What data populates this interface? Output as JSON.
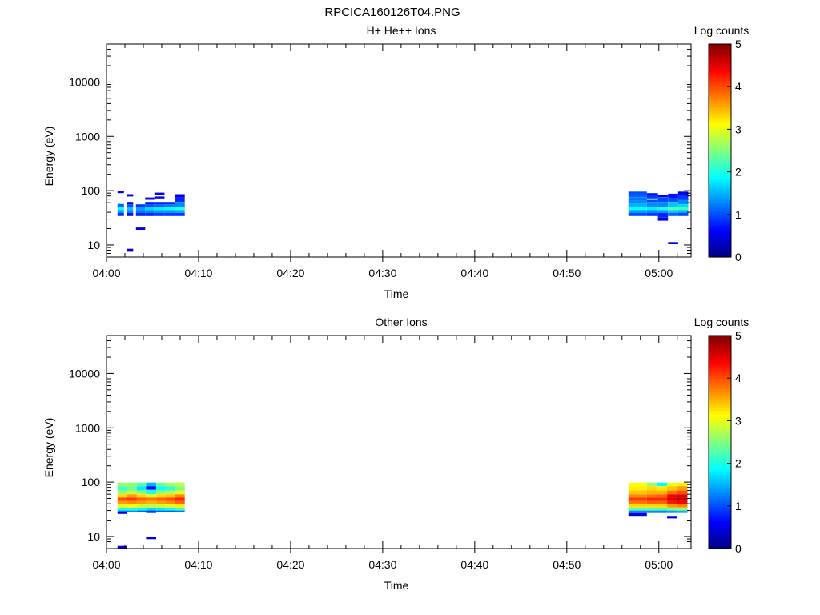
{
  "figure_title": "RPCICA160126T04.PNG",
  "colormap": "jet",
  "chart_data": [
    {
      "type": "heatmap",
      "title": "H+ He++ Ions",
      "xlabel": "Time",
      "ylabel": "Energy (eV)",
      "x_unit": "minutes after 04:00",
      "xlim": [
        0,
        63.5
      ],
      "x_ticks": [
        "04:00",
        "04:10",
        "04:20",
        "04:30",
        "04:40",
        "04:50",
        "05:00"
      ],
      "ylim": [
        6,
        50000
      ],
      "y_scale": "log",
      "y_ticks": [
        "10",
        "100",
        "1000",
        "10000"
      ],
      "colorbar": {
        "label": "Log counts",
        "range": [
          0,
          5
        ],
        "ticks": [
          "0",
          "1",
          "2",
          "3",
          "4",
          "5"
        ]
      },
      "cells": [
        [
          1.2,
          1.9,
          90,
          100,
          0.6
        ],
        [
          1.2,
          1.9,
          50,
          57,
          1.1
        ],
        [
          1.2,
          1.9,
          44,
          50,
          1.9
        ],
        [
          1.2,
          1.9,
          39,
          44,
          1.4
        ],
        [
          1.2,
          1.9,
          34,
          39,
          0.9
        ],
        [
          2.2,
          2.9,
          78,
          86,
          0.5
        ],
        [
          2.2,
          2.9,
          56,
          62,
          0.6
        ],
        [
          2.2,
          2.9,
          50,
          56,
          1.0
        ],
        [
          2.2,
          2.9,
          44,
          50,
          1.6
        ],
        [
          2.2,
          2.9,
          39,
          44,
          1.3
        ],
        [
          2.2,
          2.9,
          34,
          39,
          0.7
        ],
        [
          2.2,
          2.9,
          7.5,
          8.5,
          0.4
        ],
        [
          3.2,
          4.2,
          50,
          56,
          0.9
        ],
        [
          3.2,
          4.2,
          44,
          50,
          1.4
        ],
        [
          3.2,
          4.2,
          39,
          44,
          1.2
        ],
        [
          3.2,
          4.2,
          34,
          39,
          0.8
        ],
        [
          3.2,
          4.2,
          19,
          21,
          0.5
        ],
        [
          4.2,
          5.2,
          68,
          75,
          0.6
        ],
        [
          4.2,
          5.2,
          56,
          62,
          0.7
        ],
        [
          4.2,
          5.2,
          50,
          56,
          1.0
        ],
        [
          4.2,
          5.2,
          44,
          50,
          1.7
        ],
        [
          4.2,
          5.2,
          39,
          44,
          1.3
        ],
        [
          4.2,
          5.2,
          34,
          39,
          0.8
        ],
        [
          5.2,
          6.3,
          84,
          92,
          0.6
        ],
        [
          5.2,
          6.3,
          72,
          78,
          0.5
        ],
        [
          5.2,
          6.3,
          56,
          62,
          0.8
        ],
        [
          5.2,
          6.3,
          50,
          56,
          1.1
        ],
        [
          5.2,
          6.3,
          44,
          50,
          1.8
        ],
        [
          5.2,
          6.3,
          39,
          44,
          1.4
        ],
        [
          5.2,
          6.3,
          34,
          39,
          0.9
        ],
        [
          6.3,
          7.4,
          56,
          62,
          0.8
        ],
        [
          6.3,
          7.4,
          50,
          56,
          1.2
        ],
        [
          6.3,
          7.4,
          44,
          50,
          1.9
        ],
        [
          6.3,
          7.4,
          39,
          44,
          1.4
        ],
        [
          6.3,
          7.4,
          34,
          39,
          0.9
        ],
        [
          7.4,
          8.5,
          75,
          86,
          0.5
        ],
        [
          7.4,
          8.5,
          62,
          75,
          0.8
        ],
        [
          7.4,
          8.5,
          50,
          62,
          1.3
        ],
        [
          7.4,
          8.5,
          44,
          50,
          2.1
        ],
        [
          7.4,
          8.5,
          39,
          44,
          1.5
        ],
        [
          7.4,
          8.5,
          34,
          39,
          0.9
        ],
        [
          56.7,
          58.7,
          86,
          96,
          1.0
        ],
        [
          56.7,
          58.7,
          76,
          86,
          1.1
        ],
        [
          56.7,
          58.7,
          66,
          76,
          1.2
        ],
        [
          56.7,
          58.7,
          57,
          66,
          1.3
        ],
        [
          56.7,
          58.7,
          50,
          57,
          1.5
        ],
        [
          56.7,
          58.7,
          44,
          50,
          1.9
        ],
        [
          56.7,
          58.7,
          39,
          44,
          1.4
        ],
        [
          56.7,
          58.7,
          34,
          39,
          1.0
        ],
        [
          58.7,
          59.9,
          82,
          90,
          0.7
        ],
        [
          58.7,
          59.9,
          72,
          82,
          0.9
        ],
        [
          58.7,
          59.9,
          62,
          68,
          1.0
        ],
        [
          58.7,
          59.9,
          50,
          62,
          1.3
        ],
        [
          58.7,
          59.9,
          44,
          50,
          1.8
        ],
        [
          58.7,
          59.9,
          39,
          44,
          1.3
        ],
        [
          58.7,
          59.9,
          34,
          39,
          0.9
        ],
        [
          59.9,
          61.0,
          76,
          84,
          0.6
        ],
        [
          59.9,
          61.0,
          62,
          76,
          1.0
        ],
        [
          59.9,
          61.0,
          50,
          62,
          1.3
        ],
        [
          59.9,
          61.0,
          44,
          50,
          2.0
        ],
        [
          59.9,
          61.0,
          39,
          44,
          1.4
        ],
        [
          59.9,
          61.0,
          32,
          39,
          0.8
        ],
        [
          59.9,
          61.0,
          28,
          32,
          0.5
        ],
        [
          61.0,
          62.1,
          72,
          88,
          0.7
        ],
        [
          61.0,
          62.1,
          62,
          72,
          1.0
        ],
        [
          61.0,
          62.1,
          50,
          62,
          1.6
        ],
        [
          61.0,
          62.1,
          44,
          50,
          2.3
        ],
        [
          61.0,
          62.1,
          39,
          44,
          1.6
        ],
        [
          61.0,
          62.1,
          34,
          39,
          1.1
        ],
        [
          61.0,
          62.1,
          10.3,
          11.3,
          0.5
        ],
        [
          62.1,
          63.2,
          82,
          96,
          0.6
        ],
        [
          62.1,
          63.2,
          68,
          82,
          0.9
        ],
        [
          62.1,
          63.2,
          56,
          68,
          1.3
        ],
        [
          62.1,
          63.2,
          50,
          56,
          1.7
        ],
        [
          62.1,
          63.2,
          44,
          50,
          2.2
        ],
        [
          62.1,
          63.2,
          39,
          44,
          1.5
        ],
        [
          62.1,
          63.2,
          34,
          39,
          1.0
        ]
      ]
    },
    {
      "type": "heatmap",
      "title": "Other Ions",
      "xlabel": "Time",
      "ylabel": "Energy (eV)",
      "x_unit": "minutes after 04:00",
      "xlim": [
        0,
        63.5
      ],
      "x_ticks": [
        "04:00",
        "04:10",
        "04:20",
        "04:30",
        "04:40",
        "04:50",
        "05:00"
      ],
      "ylim": [
        6,
        50000
      ],
      "y_scale": "log",
      "y_ticks": [
        "10",
        "100",
        "1000",
        "10000"
      ],
      "colorbar": {
        "label": "Log counts",
        "range": [
          0,
          5
        ],
        "ticks": [
          "0",
          "1",
          "2",
          "3",
          "4",
          "5"
        ]
      },
      "cells": [
        [
          1.2,
          2.2,
          84,
          98,
          2.6
        ],
        [
          1.2,
          2.2,
          70,
          84,
          2.2
        ],
        [
          1.2,
          2.2,
          60,
          70,
          2.6
        ],
        [
          1.2,
          2.2,
          52,
          60,
          3.3
        ],
        [
          1.2,
          2.2,
          45,
          52,
          4.0
        ],
        [
          1.2,
          2.2,
          39,
          45,
          3.6
        ],
        [
          1.2,
          2.2,
          34,
          39,
          3.0
        ],
        [
          1.2,
          2.2,
          30,
          34,
          2.0
        ],
        [
          1.2,
          2.2,
          28,
          30,
          1.2
        ],
        [
          1.2,
          2.2,
          26,
          28,
          0.5
        ],
        [
          2.2,
          3.3,
          84,
          98,
          2.6
        ],
        [
          2.2,
          3.3,
          70,
          84,
          2.4
        ],
        [
          2.2,
          3.3,
          60,
          70,
          2.8
        ],
        [
          2.2,
          3.3,
          52,
          60,
          3.6
        ],
        [
          2.2,
          3.3,
          45,
          52,
          4.1
        ],
        [
          2.2,
          3.3,
          39,
          45,
          3.7
        ],
        [
          2.2,
          3.3,
          34,
          39,
          3.1
        ],
        [
          2.2,
          3.3,
          30,
          34,
          2.0
        ],
        [
          2.2,
          3.3,
          28,
          30,
          1.3
        ],
        [
          3.3,
          4.3,
          84,
          98,
          2.3
        ],
        [
          3.3,
          4.3,
          70,
          84,
          1.8
        ],
        [
          3.3,
          4.3,
          60,
          70,
          2.6
        ],
        [
          3.3,
          4.3,
          52,
          60,
          3.3
        ],
        [
          3.3,
          4.3,
          45,
          52,
          3.9
        ],
        [
          3.3,
          4.3,
          39,
          45,
          3.6
        ],
        [
          3.3,
          4.3,
          34,
          39,
          2.9
        ],
        [
          3.3,
          4.3,
          30,
          34,
          1.9
        ],
        [
          3.3,
          4.3,
          28,
          30,
          1.1
        ],
        [
          4.3,
          5.4,
          84,
          98,
          1.5
        ],
        [
          4.3,
          5.4,
          72,
          84,
          0.7
        ],
        [
          4.3,
          5.4,
          60,
          72,
          2.0
        ],
        [
          4.3,
          5.4,
          52,
          60,
          3.0
        ],
        [
          4.3,
          5.4,
          45,
          52,
          3.8
        ],
        [
          4.3,
          5.4,
          39,
          45,
          3.5
        ],
        [
          4.3,
          5.4,
          34,
          39,
          2.8
        ],
        [
          4.3,
          5.4,
          30,
          34,
          1.7
        ],
        [
          4.3,
          5.4,
          27,
          30,
          0.9
        ],
        [
          5.4,
          6.4,
          84,
          98,
          2.4
        ],
        [
          5.4,
          6.4,
          70,
          84,
          1.9
        ],
        [
          5.4,
          6.4,
          60,
          70,
          2.6
        ],
        [
          5.4,
          6.4,
          52,
          60,
          3.3
        ],
        [
          5.4,
          6.4,
          45,
          52,
          3.9
        ],
        [
          5.4,
          6.4,
          39,
          45,
          3.6
        ],
        [
          5.4,
          6.4,
          34,
          39,
          2.9
        ],
        [
          5.4,
          6.4,
          30,
          34,
          1.8
        ],
        [
          5.4,
          6.4,
          28,
          30,
          1.1
        ],
        [
          6.4,
          7.4,
          84,
          98,
          2.7
        ],
        [
          6.4,
          7.4,
          70,
          84,
          2.1
        ],
        [
          6.4,
          7.4,
          60,
          70,
          2.7
        ],
        [
          6.4,
          7.4,
          52,
          60,
          3.4
        ],
        [
          6.4,
          7.4,
          45,
          52,
          4.0
        ],
        [
          6.4,
          7.4,
          39,
          45,
          3.7
        ],
        [
          6.4,
          7.4,
          34,
          39,
          3.0
        ],
        [
          6.4,
          7.4,
          30,
          34,
          1.9
        ],
        [
          6.4,
          7.4,
          28,
          30,
          1.1
        ],
        [
          7.4,
          8.5,
          84,
          98,
          2.8
        ],
        [
          7.4,
          8.5,
          70,
          84,
          2.5
        ],
        [
          7.4,
          8.5,
          60,
          70,
          3.0
        ],
        [
          7.4,
          8.5,
          52,
          60,
          3.7
        ],
        [
          7.4,
          8.5,
          45,
          52,
          4.2
        ],
        [
          7.4,
          8.5,
          39,
          45,
          3.9
        ],
        [
          7.4,
          8.5,
          34,
          39,
          3.2
        ],
        [
          7.4,
          8.5,
          30,
          34,
          2.2
        ],
        [
          7.4,
          8.5,
          28,
          30,
          1.2
        ],
        [
          1.2,
          2.2,
          6.1,
          6.7,
          0.4
        ],
        [
          4.3,
          5.4,
          8.9,
          9.7,
          0.5
        ],
        [
          56.7,
          58.7,
          84,
          98,
          3.1
        ],
        [
          56.7,
          58.7,
          70,
          84,
          3.2
        ],
        [
          56.7,
          58.7,
          60,
          70,
          3.4
        ],
        [
          56.7,
          58.7,
          52,
          60,
          3.7
        ],
        [
          56.7,
          58.7,
          45,
          52,
          4.1
        ],
        [
          56.7,
          58.7,
          39,
          45,
          3.8
        ],
        [
          56.7,
          58.7,
          34,
          39,
          3.3
        ],
        [
          56.7,
          58.7,
          30,
          34,
          2.3
        ],
        [
          56.7,
          58.7,
          27,
          30,
          1.3
        ],
        [
          56.7,
          58.7,
          24,
          27,
          0.5
        ],
        [
          58.7,
          59.8,
          84,
          98,
          2.6
        ],
        [
          58.7,
          59.8,
          70,
          84,
          3.3
        ],
        [
          58.7,
          59.8,
          60,
          70,
          3.5
        ],
        [
          58.7,
          59.8,
          52,
          60,
          3.8
        ],
        [
          58.7,
          59.8,
          45,
          52,
          4.2
        ],
        [
          58.7,
          59.8,
          39,
          45,
          3.9
        ],
        [
          58.7,
          59.8,
          34,
          39,
          3.3
        ],
        [
          58.7,
          59.8,
          30,
          34,
          2.3
        ],
        [
          58.7,
          59.8,
          27,
          30,
          1.3
        ],
        [
          59.8,
          60.9,
          84,
          98,
          1.9
        ],
        [
          59.8,
          60.9,
          70,
          84,
          3.2
        ],
        [
          59.8,
          60.9,
          60,
          70,
          3.5
        ],
        [
          59.8,
          60.9,
          52,
          60,
          3.9
        ],
        [
          59.8,
          60.9,
          45,
          52,
          4.2
        ],
        [
          59.8,
          60.9,
          39,
          45,
          3.9
        ],
        [
          59.8,
          60.9,
          34,
          39,
          3.3
        ],
        [
          59.8,
          60.9,
          30,
          34,
          2.3
        ],
        [
          59.8,
          60.9,
          27,
          30,
          1.3
        ],
        [
          60.9,
          62.0,
          84,
          98,
          3.0
        ],
        [
          60.9,
          62.0,
          70,
          84,
          3.4
        ],
        [
          60.9,
          62.0,
          60,
          70,
          3.8
        ],
        [
          60.9,
          62.0,
          52,
          60,
          4.4
        ],
        [
          60.9,
          62.0,
          45,
          52,
          4.6
        ],
        [
          60.9,
          62.0,
          39,
          45,
          4.3
        ],
        [
          60.9,
          62.0,
          34,
          39,
          3.6
        ],
        [
          60.9,
          62.0,
          30,
          34,
          2.5
        ],
        [
          60.9,
          62.0,
          27,
          30,
          1.4
        ],
        [
          60.9,
          62.0,
          21.5,
          24,
          0.5
        ],
        [
          62.0,
          63.1,
          84,
          98,
          3.2
        ],
        [
          62.0,
          63.1,
          70,
          84,
          3.6
        ],
        [
          62.0,
          63.1,
          60,
          70,
          4.0
        ],
        [
          62.0,
          63.1,
          52,
          60,
          4.5
        ],
        [
          62.0,
          63.1,
          45,
          52,
          4.7
        ],
        [
          62.0,
          63.1,
          39,
          45,
          4.4
        ],
        [
          62.0,
          63.1,
          34,
          39,
          3.7
        ],
        [
          62.0,
          63.1,
          30,
          34,
          2.6
        ],
        [
          62.0,
          63.1,
          27,
          30,
          1.5
        ]
      ]
    }
  ]
}
